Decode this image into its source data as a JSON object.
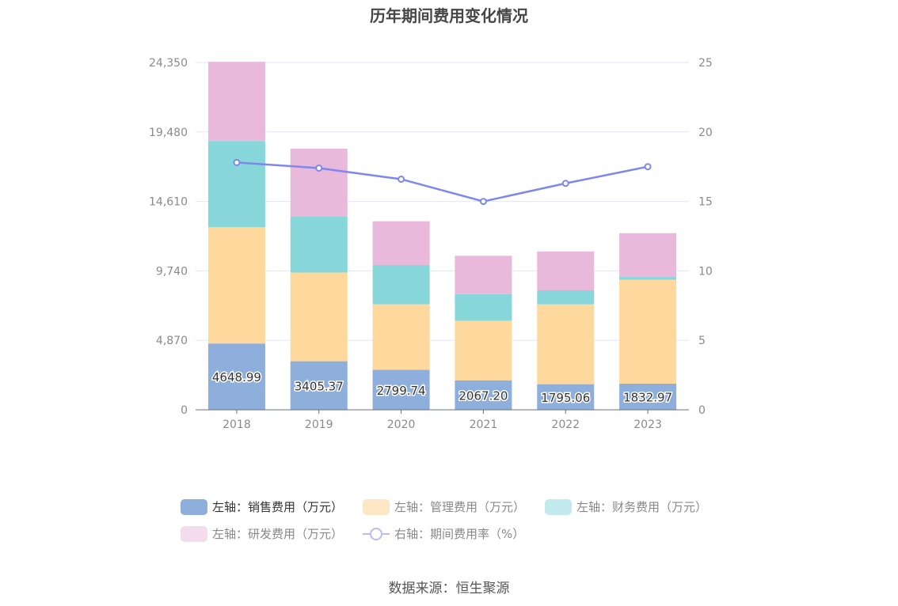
{
  "chart_data": {
    "type": "bar",
    "title": "历年期间费用变化情况",
    "categories": [
      "2018",
      "2019",
      "2020",
      "2021",
      "2022",
      "2023"
    ],
    "series": [
      {
        "name": "左轴：销售费用（万元）",
        "axis": "left",
        "color": "#8eaedb",
        "values": [
          4648.99,
          3405.37,
          2799.74,
          2067.2,
          1795.06,
          1832.97
        ]
      },
      {
        "name": "左轴：管理费用（万元）",
        "axis": "left",
        "color": "#fed89c",
        "values": [
          8150,
          6220,
          4600,
          4180,
          5600,
          7280
        ]
      },
      {
        "name": "左轴：财务费用（万元）",
        "axis": "left",
        "color": "#87d6da",
        "values": [
          6050,
          3930,
          2750,
          1860,
          980,
          200
        ]
      },
      {
        "name": "左轴：研发费用（万元）",
        "axis": "left",
        "color": "#e8b9da",
        "values": [
          5550,
          4750,
          3070,
          2690,
          2730,
          3070
        ]
      }
    ],
    "line_series": {
      "name": "右轴：期间费用率（%）",
      "axis": "right",
      "color": "#7f86ee",
      "values": [
        17.8,
        17.4,
        16.6,
        15.0,
        16.3,
        17.5
      ]
    },
    "data_labels": [
      "4648.99",
      "3405.37",
      "2799.74",
      "2067.20",
      "1795.06",
      "1832.97"
    ],
    "left_axis": {
      "ylim": [
        0,
        24350
      ],
      "ticks": [
        0,
        4870,
        9740,
        14610,
        19480,
        24350
      ],
      "tick_labels": [
        "0",
        "4,870",
        "9,740",
        "14,610",
        "19,480",
        "24,350"
      ]
    },
    "right_axis": {
      "ylim": [
        0,
        25
      ],
      "ticks": [
        0,
        5,
        10,
        15,
        20,
        25
      ],
      "tick_labels": [
        "0",
        "5",
        "10",
        "15",
        "20",
        "25"
      ]
    },
    "legend": [
      "左轴：销售费用（万元）",
      "左轴：管理费用（万元）",
      "左轴：财务费用（万元）",
      "左轴：研发费用（万元）",
      "右轴：期间费用率（%）"
    ],
    "legend_position": "bottom",
    "grid": true
  },
  "source": "数据来源：恒生聚源"
}
